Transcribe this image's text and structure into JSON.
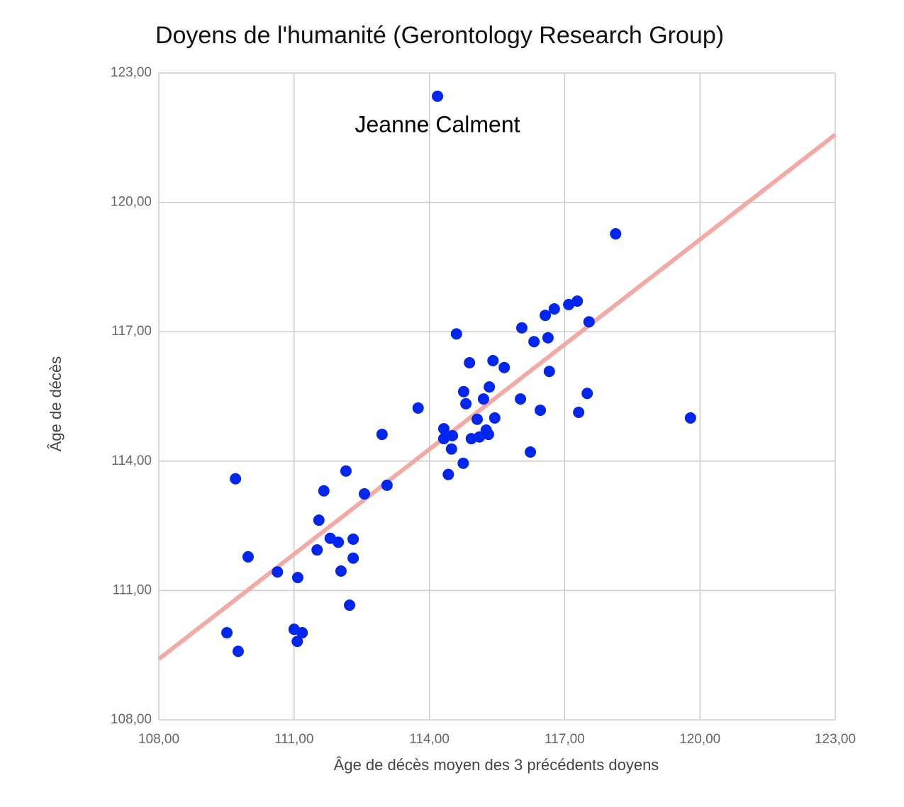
{
  "chart_data": {
    "type": "scatter",
    "title": "Doyens de l'humanité (Gerontology Research Group)",
    "xlabel": "Âge  de décès moyen des 3 précédents doyens",
    "ylabel": "Âge de décès",
    "annotation": "Jeanne Calment",
    "color": "#0026f0",
    "x": [
      114.18,
      118.13,
      117.28,
      117.09,
      116.77,
      116.57,
      117.54,
      114.6,
      116.05,
      116.63,
      116.32,
      114.89,
      115.41,
      115.66,
      116.66,
      115.33,
      114.76,
      117.5,
      115.2,
      116.02,
      114.81,
      113.75,
      116.46,
      117.31,
      119.79,
      115.45,
      115.06,
      114.32,
      115.26,
      112.95,
      115.31,
      114.51,
      115.11,
      114.93,
      114.32,
      114.49,
      116.24,
      114.75,
      114.42,
      112.15,
      109.7,
      113.06,
      111.66,
      112.56,
      111.55,
      111.8,
      111.98,
      112.31,
      111.51,
      109.98,
      112.31,
      110.63,
      112.04,
      111.08,
      112.23,
      109.51,
      111.0,
      111.18,
      111.07,
      109.76
    ],
    "values": [
      122.46,
      119.27,
      117.71,
      117.63,
      117.53,
      117.38,
      117.23,
      116.95,
      117.09,
      116.86,
      116.77,
      116.28,
      116.33,
      116.17,
      116.08,
      115.72,
      115.61,
      115.57,
      115.44,
      115.44,
      115.33,
      115.23,
      115.18,
      115.13,
      115.0,
      115.0,
      114.97,
      114.75,
      114.72,
      114.62,
      114.62,
      114.59,
      114.56,
      114.52,
      114.52,
      114.28,
      114.21,
      113.95,
      113.69,
      113.77,
      113.59,
      113.44,
      113.31,
      113.24,
      112.63,
      112.21,
      112.12,
      112.19,
      111.94,
      111.78,
      111.75,
      111.43,
      111.45,
      111.3,
      110.66,
      110.02,
      110.1,
      110.02,
      109.82,
      109.59
    ],
    "trendline": {
      "x": [
        108,
        123
      ],
      "values": [
        109.41,
        121.57
      ],
      "color": "#f3aaa4"
    },
    "xlim": [
      108,
      123
    ],
    "ylim": [
      108,
      123
    ],
    "xticks": [
      {
        "value": 108,
        "label": "108,00"
      },
      {
        "value": 111,
        "label": "111,00"
      },
      {
        "value": 114,
        "label": "114,00"
      },
      {
        "value": 117,
        "label": "117,00"
      },
      {
        "value": 120,
        "label": "120,00"
      },
      {
        "value": 123,
        "label": "123,00"
      }
    ],
    "yticks": [
      {
        "value": 108,
        "label": "108,00"
      },
      {
        "value": 111,
        "label": "111,00"
      },
      {
        "value": 114,
        "label": "114,00"
      },
      {
        "value": 117,
        "label": "117,00"
      },
      {
        "value": 120,
        "label": "120,00"
      },
      {
        "value": 123,
        "label": "123,00"
      }
    ],
    "grid": true
  }
}
